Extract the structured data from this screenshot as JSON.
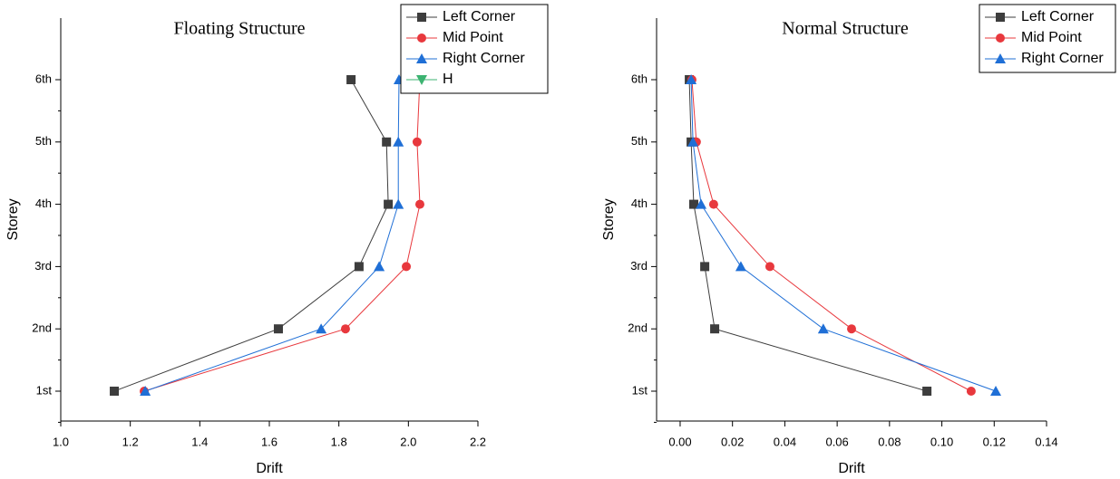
{
  "chart_data": [
    {
      "type": "line",
      "title": "Floating Structure",
      "x_label": "Drift",
      "y_label": "Storey",
      "categories": [
        "1st",
        "2nd",
        "3rd",
        "4th",
        "5th",
        "6th"
      ],
      "xlim": [
        1.0,
        2.2
      ],
      "xticks": [
        {
          "value": 1,
          "label": "1.0"
        },
        1.2,
        1.4,
        1.6,
        1.8,
        {
          "value": 2,
          "label": "2.0"
        },
        2.2
      ],
      "legend": "top right",
      "series": [
        {
          "name": "Left Corner",
          "color": "#3d3d3d",
          "marker": "square",
          "values": [
            1.154,
            1.626,
            1.858,
            1.942,
            1.937,
            1.835
          ]
        },
        {
          "name": "Mid Point",
          "color": "#e8383d",
          "marker": "circle",
          "values": [
            1.24,
            1.819,
            1.994,
            2.033,
            2.025,
            2.033
          ]
        },
        {
          "name": "Right Corner",
          "color": "#1f6fd6",
          "marker": "triangle-up",
          "values": [
            1.243,
            1.749,
            1.916,
            1.971,
            1.971,
            1.973
          ]
        },
        {
          "name": "H",
          "color": "#3cb371",
          "marker": "triangle-down",
          "values": [
            null,
            null,
            null,
            null,
            null,
            null
          ]
        }
      ]
    },
    {
      "type": "line",
      "title": "Normal Structure",
      "x_label": "Drift",
      "y_label": "Storey",
      "categories": [
        "1st",
        "2nd",
        "3rd",
        "4th",
        "5th",
        "6th"
      ],
      "xlim": [
        -0.009,
        0.14
      ],
      "xticks": [
        {
          "value": 0,
          "label": "0.00"
        },
        0.02,
        0.04,
        0.06,
        0.08,
        {
          "value": 0.1,
          "label": "0.10"
        },
        0.12,
        0.14
      ],
      "legend": "top right",
      "series": [
        {
          "name": "Left Corner",
          "color": "#3d3d3d",
          "marker": "square",
          "values": [
            0.0943,
            0.0132,
            0.0094,
            0.0052,
            0.0042,
            0.0035
          ]
        },
        {
          "name": "Mid Point",
          "color": "#e8383d",
          "marker": "circle",
          "values": [
            0.1112,
            0.0655,
            0.0343,
            0.0128,
            0.0062,
            0.0045
          ]
        },
        {
          "name": "Right Corner",
          "color": "#1f6fd6",
          "marker": "triangle-up",
          "values": [
            0.1206,
            0.0547,
            0.0232,
            0.008,
            0.0049,
            0.0042
          ]
        }
      ]
    }
  ]
}
